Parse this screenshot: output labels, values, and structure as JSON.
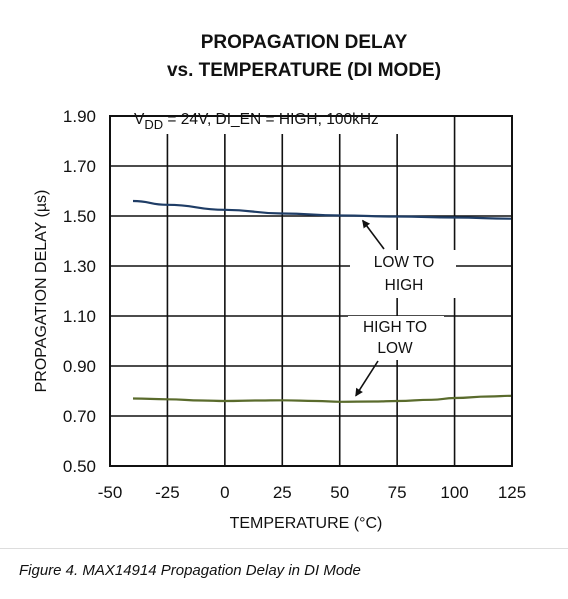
{
  "chart_data": {
    "type": "line",
    "title_lines": [
      "PROPAGATION DELAY",
      "vs. TEMPERATURE (DI MODE)"
    ],
    "xlabel": "TEMPERATURE (°C)",
    "ylabel": "PROPAGATION DELAY (µs)",
    "xlim": [
      -50,
      125
    ],
    "ylim": [
      0.5,
      1.9
    ],
    "x_ticks": [
      -50,
      -25,
      0,
      25,
      50,
      75,
      100,
      125
    ],
    "y_ticks": [
      0.5,
      0.7,
      0.9,
      1.1,
      1.3,
      1.5,
      1.7,
      1.9
    ],
    "x_tick_labels": [
      "-50",
      "-25",
      "0",
      "25",
      "50",
      "75",
      "100",
      "125"
    ],
    "y_tick_labels": [
      "0.50",
      "0.70",
      "0.90",
      "1.10",
      "1.30",
      "1.50",
      "1.70",
      "1.90"
    ],
    "grid": true,
    "condition": {
      "prefix": "V",
      "subscript": "DD",
      "suffix": " = 24V, DI_EN = HIGH, 100kHz"
    },
    "series": [
      {
        "name": "LOW TO HIGH",
        "label_lines": [
          "LOW TO",
          "HIGH"
        ],
        "color": "#1f3d66",
        "x": [
          -40,
          -25,
          0,
          25,
          50,
          75,
          100,
          125
        ],
        "y": [
          1.56,
          1.545,
          1.525,
          1.51,
          1.502,
          1.498,
          1.494,
          1.489
        ]
      },
      {
        "name": "HIGH TO LOW",
        "label_lines": [
          "HIGH TO",
          "LOW"
        ],
        "color": "#5a6b2c",
        "x": [
          -40,
          -25,
          -10,
          0,
          15,
          25,
          40,
          50,
          65,
          75,
          90,
          100,
          115,
          125
        ],
        "y": [
          0.77,
          0.767,
          0.762,
          0.76,
          0.762,
          0.763,
          0.76,
          0.757,
          0.758,
          0.76,
          0.765,
          0.772,
          0.778,
          0.781
        ]
      }
    ]
  },
  "caption": "Figure 4. MAX14914 Propagation Delay in DI Mode"
}
